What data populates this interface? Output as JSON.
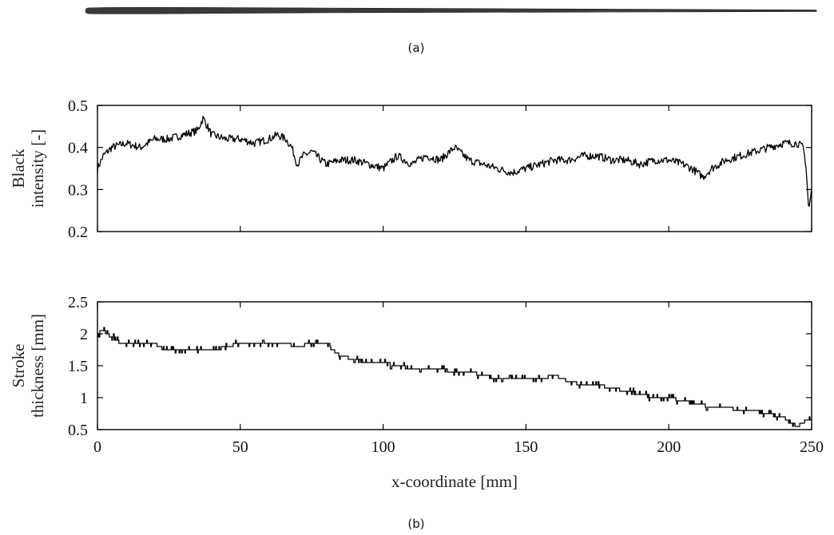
{
  "captions": {
    "a": "(a)",
    "b": "(b)"
  },
  "colors": {
    "stroke": "#000000",
    "brush_stroke": "#3a3a3a"
  },
  "chart_data": [
    {
      "type": "line",
      "title": "",
      "xlabel": "",
      "ylabel_lines": [
        "Black",
        "intensity [-]"
      ],
      "xlim": [
        0,
        250
      ],
      "ylim": [
        0.2,
        0.5
      ],
      "xticks": [
        0,
        50,
        100,
        150,
        200,
        250
      ],
      "yticks": [
        0.2,
        0.3,
        0.4,
        0.5
      ],
      "ytick_labels": [
        "0.2",
        "0.3",
        "0.4",
        "0.5"
      ],
      "show_xtick_labels": false,
      "grid": false,
      "series": [
        {
          "x": [
            0,
            2,
            5,
            10,
            15,
            20,
            25,
            30,
            35,
            37,
            40,
            45,
            50,
            55,
            60,
            63,
            66,
            68,
            70,
            72,
            75,
            80,
            85,
            90,
            95,
            100,
            105,
            110,
            115,
            120,
            125,
            130,
            135,
            140,
            145,
            150,
            155,
            160,
            165,
            170,
            175,
            180,
            185,
            190,
            195,
            200,
            205,
            208,
            210,
            212,
            215,
            220,
            225,
            230,
            235,
            240,
            245,
            247,
            248,
            249,
            250
          ],
          "y": [
            0.35,
            0.38,
            0.4,
            0.41,
            0.4,
            0.42,
            0.42,
            0.43,
            0.44,
            0.47,
            0.43,
            0.42,
            0.42,
            0.41,
            0.42,
            0.43,
            0.42,
            0.4,
            0.36,
            0.38,
            0.39,
            0.36,
            0.37,
            0.37,
            0.36,
            0.35,
            0.38,
            0.36,
            0.38,
            0.37,
            0.4,
            0.37,
            0.36,
            0.35,
            0.34,
            0.35,
            0.36,
            0.37,
            0.37,
            0.38,
            0.38,
            0.37,
            0.37,
            0.36,
            0.37,
            0.37,
            0.36,
            0.35,
            0.34,
            0.33,
            0.35,
            0.37,
            0.38,
            0.39,
            0.4,
            0.41,
            0.41,
            0.4,
            0.36,
            0.25,
            0.3
          ]
        }
      ]
    },
    {
      "type": "line",
      "title": "",
      "xlabel": "x-coordinate [mm]",
      "ylabel_lines": [
        "Stroke",
        "thickness [mm]"
      ],
      "xlim": [
        0,
        250
      ],
      "ylim": [
        0.5,
        2.5
      ],
      "xticks": [
        0,
        50,
        100,
        150,
        200,
        250
      ],
      "xtick_labels": [
        "0",
        "50",
        "100",
        "150",
        "200",
        "250"
      ],
      "yticks": [
        0.5,
        1,
        1.5,
        2,
        2.5
      ],
      "ytick_labels": [
        "0.5",
        "1",
        "1.5",
        "2",
        "2.5"
      ],
      "show_xtick_labels": true,
      "grid": false,
      "series": [
        {
          "x": [
            0,
            1,
            2,
            3,
            5,
            8,
            10,
            15,
            20,
            23,
            25,
            30,
            35,
            40,
            45,
            50,
            55,
            60,
            65,
            70,
            75,
            80,
            82,
            85,
            90,
            95,
            100,
            105,
            110,
            115,
            120,
            125,
            130,
            135,
            140,
            145,
            150,
            155,
            160,
            165,
            170,
            175,
            180,
            185,
            190,
            195,
            200,
            205,
            210,
            215,
            220,
            225,
            230,
            235,
            240,
            243,
            245,
            248,
            250
          ],
          "y": [
            1.95,
            2.05,
            2.1,
            2.0,
            1.95,
            1.85,
            1.85,
            1.85,
            1.85,
            1.75,
            1.75,
            1.75,
            1.75,
            1.75,
            1.8,
            1.85,
            1.85,
            1.85,
            1.85,
            1.8,
            1.85,
            1.85,
            1.75,
            1.65,
            1.6,
            1.55,
            1.55,
            1.5,
            1.45,
            1.45,
            1.45,
            1.4,
            1.4,
            1.35,
            1.3,
            1.3,
            1.3,
            1.3,
            1.35,
            1.25,
            1.2,
            1.2,
            1.15,
            1.1,
            1.05,
            1.0,
            1.0,
            0.95,
            0.9,
            0.85,
            0.85,
            0.8,
            0.8,
            0.75,
            0.7,
            0.6,
            0.55,
            0.65,
            0.65
          ]
        }
      ]
    }
  ]
}
